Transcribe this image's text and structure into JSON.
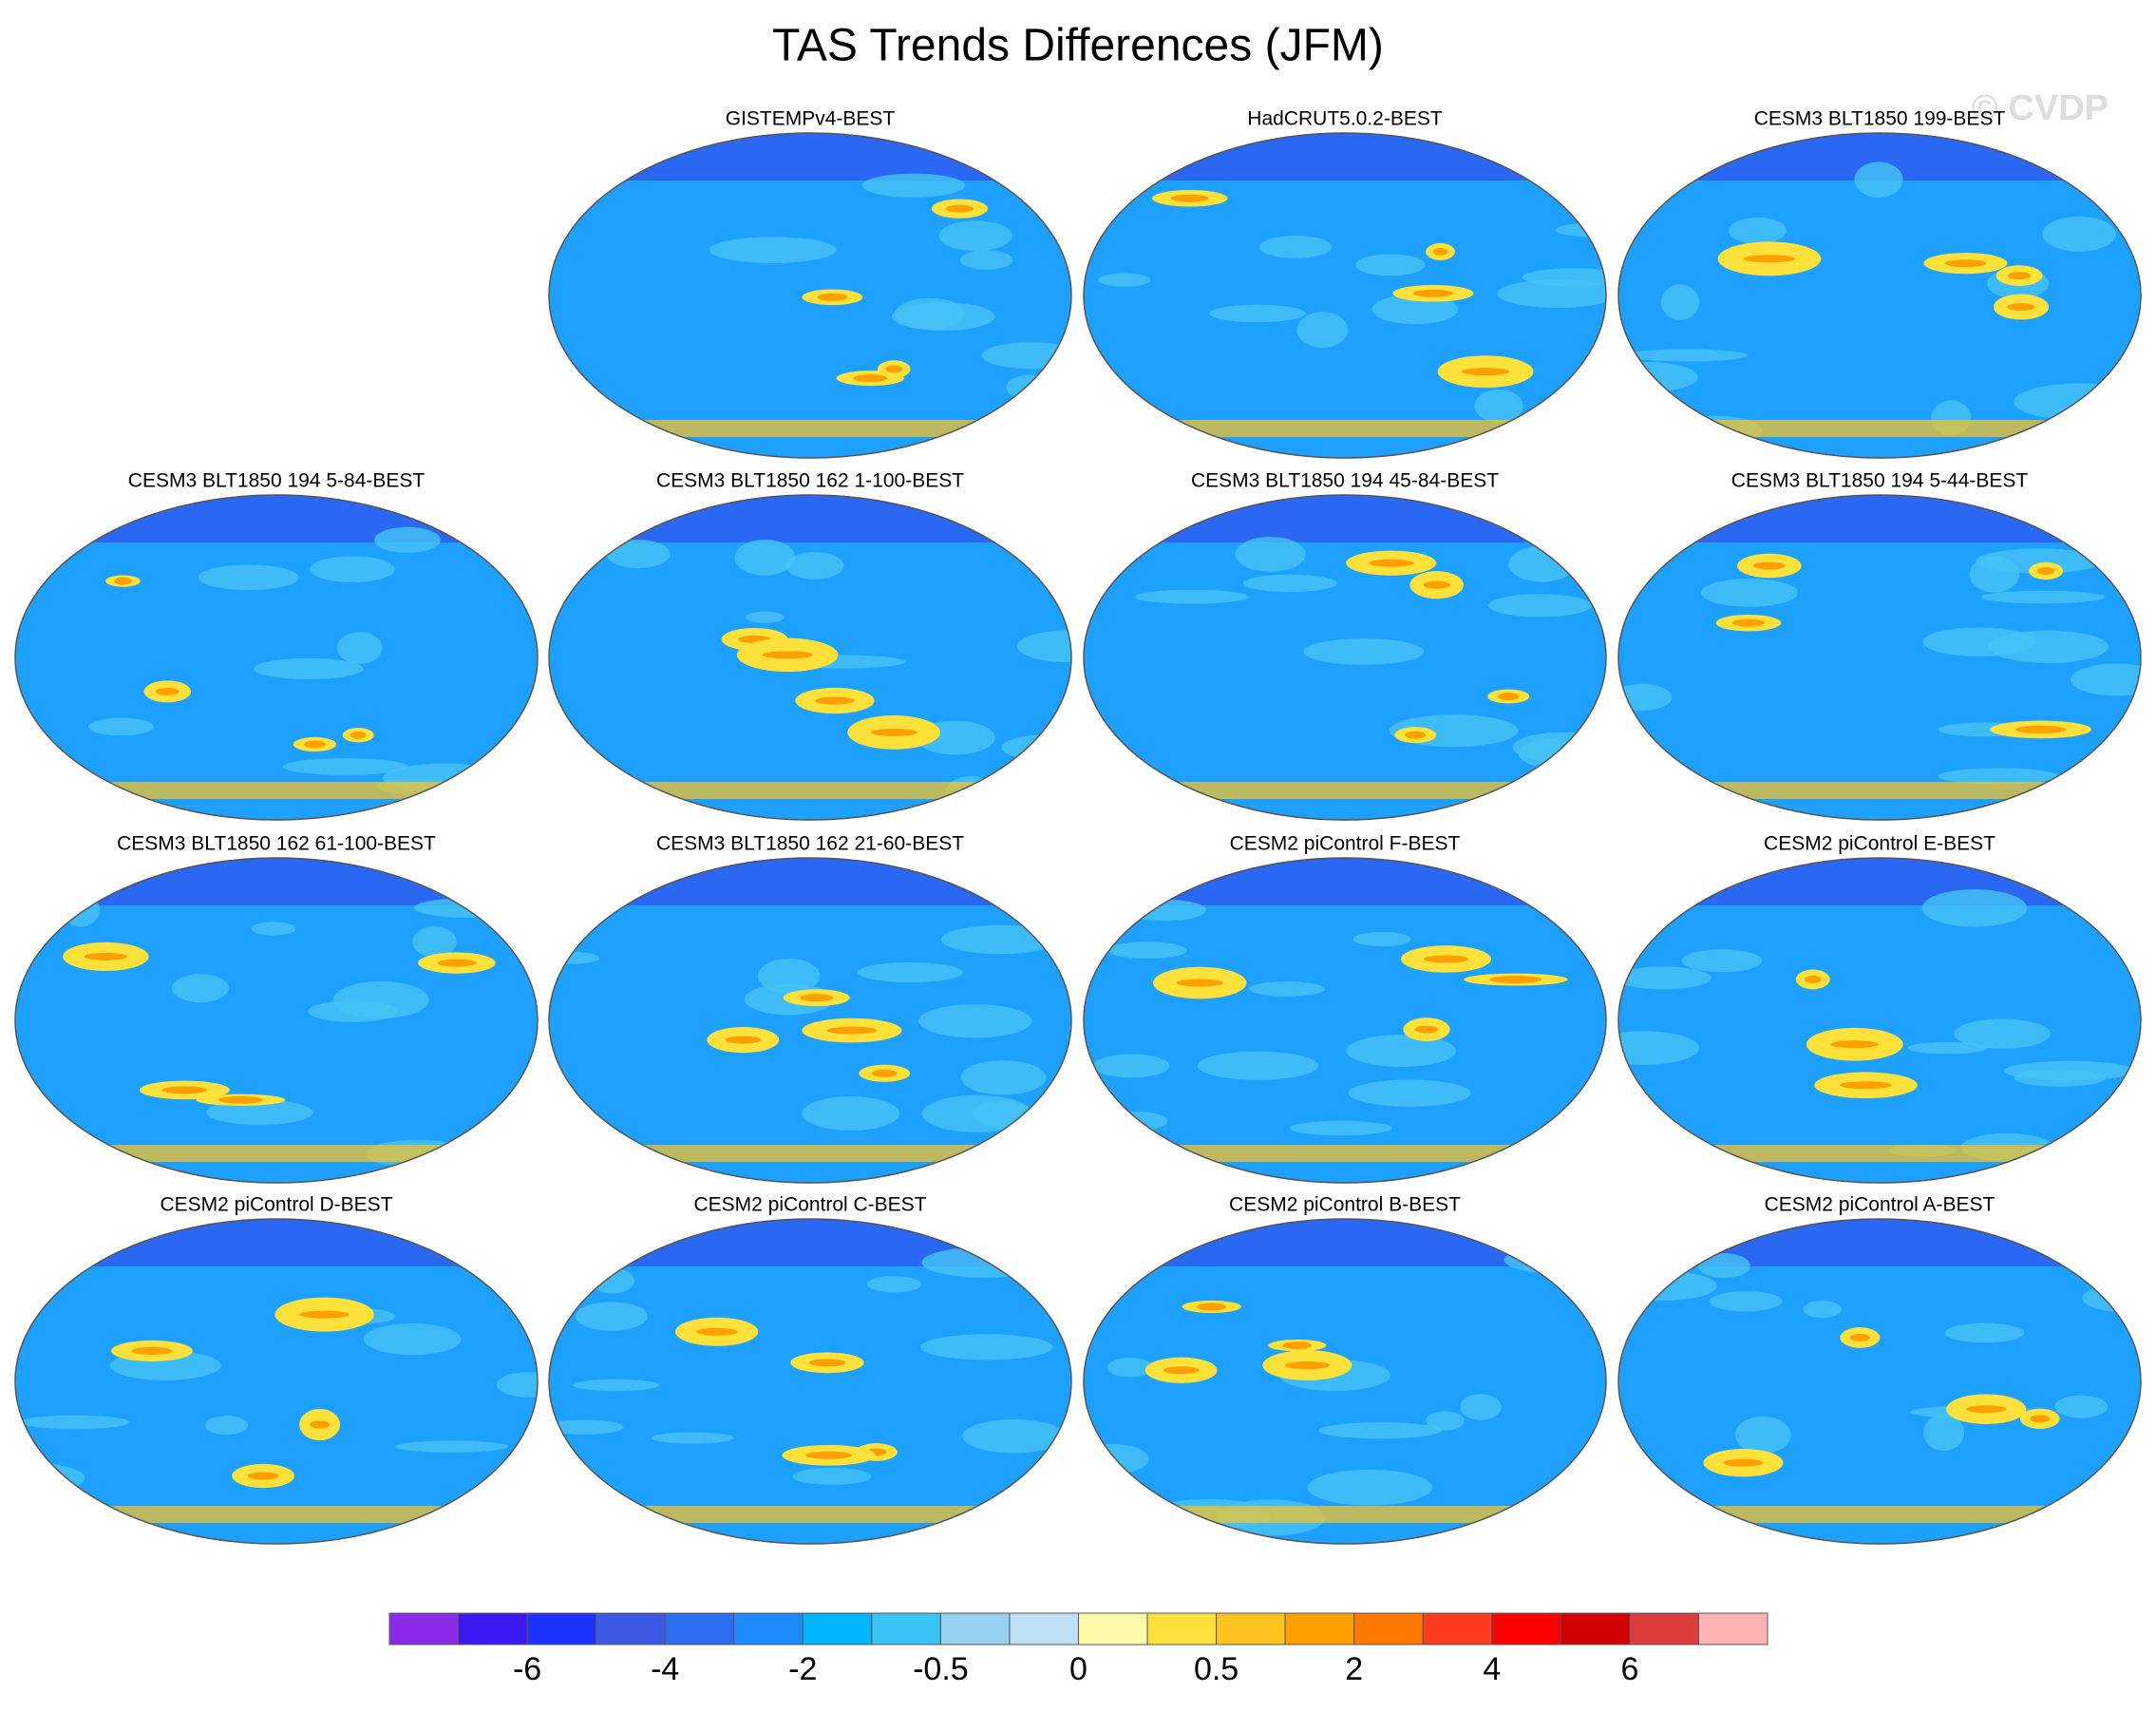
{
  "title": "TAS Trends Differences (JFM)",
  "watermark": "© CVDP",
  "panels": [
    {
      "title": "GISTEMPv4-BEST"
    },
    {
      "title": "HadCRUT5.0.2-BEST"
    },
    {
      "title": "CESM3 BLT1850 199-BEST"
    },
    {
      "title": "CESM3 BLT1850 194 5-84-BEST"
    },
    {
      "title": "CESM3 BLT1850 162 1-100-BEST"
    },
    {
      "title": "CESM3 BLT1850 194 45-84-BEST"
    },
    {
      "title": "CESM3 BLT1850 194 5-44-BEST"
    },
    {
      "title": "CESM3 BLT1850 162 61-100-BEST"
    },
    {
      "title": "CESM3 BLT1850 162 21-60-BEST"
    },
    {
      "title": "CESM2 piControl F-BEST"
    },
    {
      "title": "CESM2 piControl E-BEST"
    },
    {
      "title": "CESM2 piControl D-BEST"
    },
    {
      "title": "CESM2 piControl C-BEST"
    },
    {
      "title": "CESM2 piControl B-BEST"
    },
    {
      "title": "CESM2 piControl A-BEST"
    }
  ],
  "colorbar": {
    "colors": [
      "#8a2be6",
      "#3c19f0",
      "#1e32ff",
      "#3c5ae6",
      "#2d6ef0",
      "#1e8cff",
      "#00b4ff",
      "#3cc3f5",
      "#96d2f0",
      "#bee1f5",
      "#fffaaa",
      "#ffe13c",
      "#ffc31e",
      "#ffa000",
      "#ff7800",
      "#ff3c1e",
      "#ff0000",
      "#d20000",
      "#dc3c3c",
      "#ffb4b4"
    ],
    "labels": [
      "-6",
      "-4",
      "-2",
      "-0.5",
      "0",
      "0.5",
      "2",
      "4",
      "6"
    ]
  }
}
